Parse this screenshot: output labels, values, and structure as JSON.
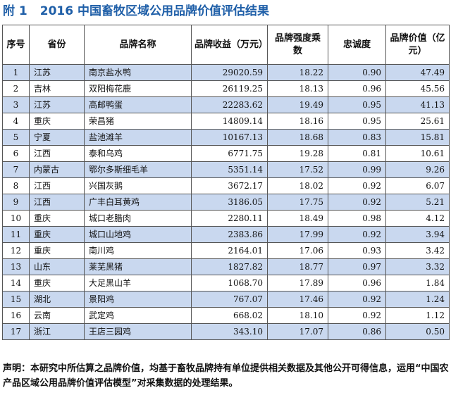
{
  "title": {
    "prefix": "附 1",
    "text": "2016 中国畜牧区域公用品牌价值评估结果"
  },
  "table": {
    "headers": {
      "no": "序号",
      "province": "省份",
      "name": "品牌名称",
      "revenue": "品牌收益（万元）",
      "intensity": "品牌强度乘数",
      "loyalty": "忠诚度",
      "value": "品牌价值（亿元）"
    },
    "rows": [
      {
        "no": "1",
        "province": "江苏",
        "name": "南京盐水鸭",
        "revenue": "29020.59",
        "intensity": "18.22",
        "loyalty": "0.90",
        "value": "47.49"
      },
      {
        "no": "2",
        "province": "吉林",
        "name": "双阳梅花鹿",
        "revenue": "26119.25",
        "intensity": "18.13",
        "loyalty": "0.96",
        "value": "45.56"
      },
      {
        "no": "3",
        "province": "江苏",
        "name": "高邮鸭蛋",
        "revenue": "22283.62",
        "intensity": "19.49",
        "loyalty": "0.95",
        "value": "41.13"
      },
      {
        "no": "4",
        "province": "重庆",
        "name": "荣昌猪",
        "revenue": "14809.14",
        "intensity": "18.16",
        "loyalty": "0.95",
        "value": "25.61"
      },
      {
        "no": "5",
        "province": "宁夏",
        "name": "盐池滩羊",
        "revenue": "10167.13",
        "intensity": "18.68",
        "loyalty": "0.83",
        "value": "15.81"
      },
      {
        "no": "6",
        "province": "江西",
        "name": "泰和乌鸡",
        "revenue": "6771.75",
        "intensity": "19.28",
        "loyalty": "0.81",
        "value": "10.61"
      },
      {
        "no": "7",
        "province": "内蒙古",
        "name": "鄂尔多斯细毛羊",
        "revenue": "5351.14",
        "intensity": "17.52",
        "loyalty": "0.99",
        "value": "9.26"
      },
      {
        "no": "8",
        "province": "江西",
        "name": "兴国灰鹅",
        "revenue": "3672.17",
        "intensity": "18.02",
        "loyalty": "0.92",
        "value": "6.07"
      },
      {
        "no": "9",
        "province": "江西",
        "name": "广丰白耳黄鸡",
        "revenue": "3186.05",
        "intensity": "17.75",
        "loyalty": "0.92",
        "value": "5.21"
      },
      {
        "no": "10",
        "province": "重庆",
        "name": "城口老腊肉",
        "revenue": "2280.11",
        "intensity": "18.49",
        "loyalty": "0.98",
        "value": "4.12"
      },
      {
        "no": "11",
        "province": "重庆",
        "name": "城口山地鸡",
        "revenue": "2383.86",
        "intensity": "17.99",
        "loyalty": "0.92",
        "value": "3.94"
      },
      {
        "no": "12",
        "province": "重庆",
        "name": "南川鸡",
        "revenue": "2164.01",
        "intensity": "17.06",
        "loyalty": "0.93",
        "value": "3.42"
      },
      {
        "no": "13",
        "province": "山东",
        "name": "莱芜黑猪",
        "revenue": "1827.82",
        "intensity": "18.77",
        "loyalty": "0.97",
        "value": "3.32"
      },
      {
        "no": "14",
        "province": "重庆",
        "name": "大足黑山羊",
        "revenue": "1068.70",
        "intensity": "17.89",
        "loyalty": "0.96",
        "value": "1.84"
      },
      {
        "no": "15",
        "province": "湖北",
        "name": "景阳鸡",
        "revenue": "767.07",
        "intensity": "17.46",
        "loyalty": "0.92",
        "value": "1.24"
      },
      {
        "no": "16",
        "province": "云南",
        "name": "武定鸡",
        "revenue": "668.02",
        "intensity": "18.10",
        "loyalty": "0.92",
        "value": "1.12"
      },
      {
        "no": "17",
        "province": "浙江",
        "name": "王店三园鸡",
        "revenue": "343.10",
        "intensity": "17.07",
        "loyalty": "0.86",
        "value": "0.50"
      }
    ]
  },
  "note": "声明：本研究中所估算之品牌价值，均基于畜牧品牌持有单位提供相关数据及其他公开可得信息，运用“中国农产品区域公用品牌价值评估模型”对采集数据的处理结果。",
  "colors": {
    "title": "#1f5fa8",
    "row_shade": "#c9d8ef",
    "border": "#555555"
  }
}
